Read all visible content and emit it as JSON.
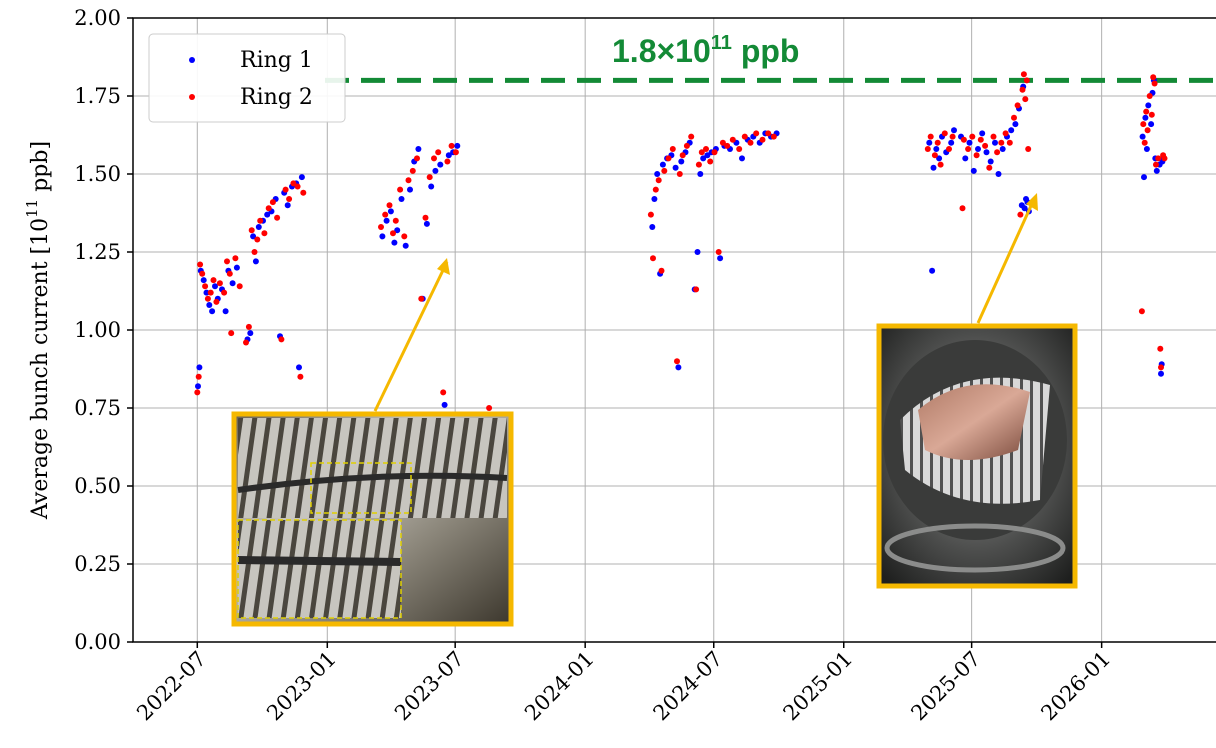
{
  "chart_data": {
    "type": "scatter",
    "ylabel_main": "Average bunch current [10",
    "ylabel_exp": "11",
    "ylabel_unit": " ppb]",
    "ylim": [
      0,
      2.0
    ],
    "xlim": [
      "2022-04-01",
      "2026-04-01"
    ],
    "yticks": [
      "0.00",
      "0.25",
      "0.50",
      "0.75",
      "1.00",
      "1.25",
      "1.50",
      "1.75",
      "2.00"
    ],
    "xticks": [
      "2022-07",
      "2023-01",
      "2023-07",
      "2024-01",
      "2024-07",
      "2025-01",
      "2025-07",
      "2026-01"
    ],
    "grid": true,
    "legend_position": "top-left",
    "legend": [
      {
        "name": "Ring 1",
        "color": "#0000ff"
      },
      {
        "name": "Ring 2",
        "color": "#ff0000"
      }
    ],
    "target_line": {
      "y": 1.8,
      "label_main": "1.8×10",
      "label_exp": "11",
      "label_unit": " ppb",
      "color": "#138a36"
    },
    "series": [
      {
        "name": "Ring 1",
        "color": "#0000ff",
        "points": [
          [
            "2022-07-02",
            0.82
          ],
          [
            "2022-07-04",
            0.88
          ],
          [
            "2022-07-06",
            1.19
          ],
          [
            "2022-07-10",
            1.16
          ],
          [
            "2022-07-14",
            1.12
          ],
          [
            "2022-07-18",
            1.08
          ],
          [
            "2022-07-22",
            1.06
          ],
          [
            "2022-07-26",
            1.14
          ],
          [
            "2022-07-30",
            1.1
          ],
          [
            "2022-08-05",
            1.13
          ],
          [
            "2022-08-10",
            1.06
          ],
          [
            "2022-08-14",
            1.19
          ],
          [
            "2022-08-20",
            1.15
          ],
          [
            "2022-08-26",
            1.2
          ],
          [
            "2022-09-10",
            0.97
          ],
          [
            "2022-09-14",
            0.99
          ],
          [
            "2022-09-18",
            1.3
          ],
          [
            "2022-09-22",
            1.22
          ],
          [
            "2022-09-26",
            1.33
          ],
          [
            "2022-10-02",
            1.35
          ],
          [
            "2022-10-08",
            1.37
          ],
          [
            "2022-10-14",
            1.38
          ],
          [
            "2022-10-20",
            1.42
          ],
          [
            "2022-10-26",
            0.98
          ],
          [
            "2022-11-01",
            1.44
          ],
          [
            "2022-11-06",
            1.4
          ],
          [
            "2022-11-12",
            1.46
          ],
          [
            "2022-11-18",
            1.47
          ],
          [
            "2022-11-22",
            0.88
          ],
          [
            "2022-11-26",
            1.49
          ],
          [
            "2023-03-20",
            1.3
          ],
          [
            "2023-03-26",
            1.35
          ],
          [
            "2023-04-01",
            1.38
          ],
          [
            "2023-04-06",
            1.28
          ],
          [
            "2023-04-10",
            1.32
          ],
          [
            "2023-04-16",
            1.42
          ],
          [
            "2023-04-22",
            1.27
          ],
          [
            "2023-04-28",
            1.45
          ],
          [
            "2023-05-04",
            1.54
          ],
          [
            "2023-05-10",
            1.58
          ],
          [
            "2023-05-16",
            1.1
          ],
          [
            "2023-05-22",
            1.34
          ],
          [
            "2023-05-28",
            1.46
          ],
          [
            "2023-06-03",
            1.51
          ],
          [
            "2023-06-10",
            1.53
          ],
          [
            "2023-06-16",
            0.76
          ],
          [
            "2023-06-22",
            1.56
          ],
          [
            "2023-06-28",
            1.57
          ],
          [
            "2023-07-04",
            1.59
          ],
          [
            "2023-08-20",
            0.72
          ],
          [
            "2023-08-24",
            0.54
          ],
          [
            "2023-08-26",
            0.63
          ],
          [
            "2023-08-28",
            0.5
          ],
          [
            "2024-04-05",
            1.33
          ],
          [
            "2024-04-08",
            1.42
          ],
          [
            "2024-04-12",
            1.5
          ],
          [
            "2024-04-16",
            1.18
          ],
          [
            "2024-04-20",
            1.53
          ],
          [
            "2024-04-26",
            1.55
          ],
          [
            "2024-05-02",
            1.56
          ],
          [
            "2024-05-08",
            1.52
          ],
          [
            "2024-05-12",
            0.88
          ],
          [
            "2024-05-16",
            1.54
          ],
          [
            "2024-05-22",
            1.57
          ],
          [
            "2024-05-28",
            1.6
          ],
          [
            "2024-06-04",
            1.13
          ],
          [
            "2024-06-08",
            1.25
          ],
          [
            "2024-06-12",
            1.5
          ],
          [
            "2024-06-16",
            1.55
          ],
          [
            "2024-06-22",
            1.56
          ],
          [
            "2024-06-28",
            1.57
          ],
          [
            "2024-07-04",
            1.58
          ],
          [
            "2024-07-10",
            1.23
          ],
          [
            "2024-07-16",
            1.59
          ],
          [
            "2024-07-24",
            1.58
          ],
          [
            "2024-08-02",
            1.6
          ],
          [
            "2024-08-10",
            1.55
          ],
          [
            "2024-08-18",
            1.61
          ],
          [
            "2024-08-26",
            1.62
          ],
          [
            "2024-09-04",
            1.6
          ],
          [
            "2024-09-12",
            1.63
          ],
          [
            "2024-09-20",
            1.62
          ],
          [
            "2024-09-28",
            1.63
          ],
          [
            "2025-05-02",
            1.6
          ],
          [
            "2025-05-06",
            1.19
          ],
          [
            "2025-05-08",
            1.52
          ],
          [
            "2025-05-12",
            1.58
          ],
          [
            "2025-05-16",
            1.55
          ],
          [
            "2025-05-20",
            1.62
          ],
          [
            "2025-05-26",
            1.57
          ],
          [
            "2025-06-02",
            1.6
          ],
          [
            "2025-06-06",
            1.64
          ],
          [
            "2025-06-16",
            1.62
          ],
          [
            "2025-06-22",
            1.55
          ],
          [
            "2025-06-28",
            1.6
          ],
          [
            "2025-07-04",
            1.51
          ],
          [
            "2025-07-10",
            1.58
          ],
          [
            "2025-07-16",
            1.63
          ],
          [
            "2025-07-22",
            1.57
          ],
          [
            "2025-07-28",
            1.54
          ],
          [
            "2025-08-03",
            1.6
          ],
          [
            "2025-08-08",
            1.5
          ],
          [
            "2025-08-14",
            1.58
          ],
          [
            "2025-08-20",
            1.62
          ],
          [
            "2025-08-26",
            1.64
          ],
          [
            "2025-09-01",
            1.66
          ],
          [
            "2025-09-06",
            1.71
          ],
          [
            "2025-09-10",
            1.4
          ],
          [
            "2025-09-12",
            1.78
          ],
          [
            "2025-09-14",
            1.39
          ],
          [
            "2025-09-16",
            1.42
          ],
          [
            "2025-09-18",
            1.41
          ],
          [
            "2025-09-20",
            1.38
          ],
          [
            "2026-02-28",
            1.62
          ],
          [
            "2026-03-02",
            1.49
          ],
          [
            "2026-03-04",
            1.68
          ],
          [
            "2026-03-06",
            1.58
          ],
          [
            "2026-03-08",
            1.72
          ],
          [
            "2026-03-12",
            1.66
          ],
          [
            "2026-03-14",
            1.76
          ],
          [
            "2026-03-16",
            1.8
          ],
          [
            "2026-03-18",
            1.55
          ],
          [
            "2026-03-20",
            1.51
          ],
          [
            "2026-03-24",
            1.53
          ],
          [
            "2026-03-26",
            0.86
          ],
          [
            "2026-03-27",
            0.89
          ],
          [
            "2026-03-28",
            1.54
          ],
          [
            "2026-03-30",
            1.55
          ]
        ]
      },
      {
        "name": "Ring 2",
        "color": "#ff0000",
        "points": [
          [
            "2022-07-01",
            0.8
          ],
          [
            "2022-07-03",
            0.85
          ],
          [
            "2022-07-05",
            1.21
          ],
          [
            "2022-07-08",
            1.18
          ],
          [
            "2022-07-12",
            1.14
          ],
          [
            "2022-07-16",
            1.1
          ],
          [
            "2022-07-20",
            1.12
          ],
          [
            "2022-07-24",
            1.16
          ],
          [
            "2022-07-28",
            1.09
          ],
          [
            "2022-08-02",
            1.15
          ],
          [
            "2022-08-08",
            1.12
          ],
          [
            "2022-08-12",
            1.22
          ],
          [
            "2022-08-16",
            1.18
          ],
          [
            "2022-08-18",
            0.99
          ],
          [
            "2022-08-24",
            1.23
          ],
          [
            "2022-08-30",
            1.14
          ],
          [
            "2022-09-08",
            0.96
          ],
          [
            "2022-09-12",
            1.01
          ],
          [
            "2022-09-16",
            1.32
          ],
          [
            "2022-09-20",
            1.25
          ],
          [
            "2022-09-24",
            1.29
          ],
          [
            "2022-09-28",
            1.35
          ],
          [
            "2022-10-04",
            1.31
          ],
          [
            "2022-10-10",
            1.39
          ],
          [
            "2022-10-16",
            1.41
          ],
          [
            "2022-10-22",
            1.36
          ],
          [
            "2022-10-28",
            0.97
          ],
          [
            "2022-11-03",
            1.45
          ],
          [
            "2022-11-08",
            1.42
          ],
          [
            "2022-11-14",
            1.47
          ],
          [
            "2022-11-20",
            1.46
          ],
          [
            "2022-11-24",
            0.85
          ],
          [
            "2022-11-28",
            1.44
          ],
          [
            "2023-03-18",
            1.33
          ],
          [
            "2023-03-24",
            1.37
          ],
          [
            "2023-03-30",
            1.4
          ],
          [
            "2023-04-04",
            1.31
          ],
          [
            "2023-04-08",
            1.35
          ],
          [
            "2023-04-14",
            1.45
          ],
          [
            "2023-04-20",
            1.3
          ],
          [
            "2023-04-26",
            1.48
          ],
          [
            "2023-05-02",
            1.51
          ],
          [
            "2023-05-08",
            1.55
          ],
          [
            "2023-05-14",
            1.1
          ],
          [
            "2023-05-20",
            1.36
          ],
          [
            "2023-05-26",
            1.49
          ],
          [
            "2023-06-01",
            1.55
          ],
          [
            "2023-06-07",
            1.57
          ],
          [
            "2023-06-14",
            0.8
          ],
          [
            "2023-06-20",
            1.54
          ],
          [
            "2023-06-26",
            1.59
          ],
          [
            "2023-07-02",
            1.57
          ],
          [
            "2023-08-18",
            0.75
          ],
          [
            "2023-08-22",
            0.49
          ],
          [
            "2023-08-25",
            0.6
          ],
          [
            "2023-08-27",
            0.49
          ],
          [
            "2024-04-03",
            1.37
          ],
          [
            "2024-04-06",
            1.23
          ],
          [
            "2024-04-10",
            1.45
          ],
          [
            "2024-04-14",
            1.48
          ],
          [
            "2024-04-18",
            1.19
          ],
          [
            "2024-04-22",
            1.51
          ],
          [
            "2024-04-28",
            1.55
          ],
          [
            "2024-05-04",
            1.58
          ],
          [
            "2024-05-10",
            0.9
          ],
          [
            "2024-05-14",
            1.5
          ],
          [
            "2024-05-18",
            1.56
          ],
          [
            "2024-05-24",
            1.59
          ],
          [
            "2024-05-30",
            1.62
          ],
          [
            "2024-06-06",
            1.13
          ],
          [
            "2024-06-10",
            1.53
          ],
          [
            "2024-06-14",
            1.57
          ],
          [
            "2024-06-20",
            1.58
          ],
          [
            "2024-06-26",
            1.54
          ],
          [
            "2024-07-02",
            1.57
          ],
          [
            "2024-07-08",
            1.25
          ],
          [
            "2024-07-14",
            1.6
          ],
          [
            "2024-07-20",
            1.59
          ],
          [
            "2024-07-28",
            1.61
          ],
          [
            "2024-08-06",
            1.58
          ],
          [
            "2024-08-14",
            1.62
          ],
          [
            "2024-08-22",
            1.6
          ],
          [
            "2024-08-30",
            1.63
          ],
          [
            "2024-09-08",
            1.61
          ],
          [
            "2024-09-16",
            1.63
          ],
          [
            "2024-09-24",
            1.62
          ],
          [
            "2025-04-30",
            1.58
          ],
          [
            "2025-05-04",
            1.62
          ],
          [
            "2025-05-10",
            1.56
          ],
          [
            "2025-05-14",
            1.6
          ],
          [
            "2025-05-18",
            1.53
          ],
          [
            "2025-05-24",
            1.63
          ],
          [
            "2025-05-30",
            1.58
          ],
          [
            "2025-06-04",
            1.62
          ],
          [
            "2025-06-18",
            1.39
          ],
          [
            "2025-06-20",
            1.61
          ],
          [
            "2025-06-26",
            1.58
          ],
          [
            "2025-07-02",
            1.62
          ],
          [
            "2025-07-08",
            1.56
          ],
          [
            "2025-07-14",
            1.61
          ],
          [
            "2025-07-20",
            1.59
          ],
          [
            "2025-07-26",
            1.52
          ],
          [
            "2025-08-01",
            1.62
          ],
          [
            "2025-08-06",
            1.57
          ],
          [
            "2025-08-12",
            1.6
          ],
          [
            "2025-08-18",
            1.63
          ],
          [
            "2025-08-24",
            1.6
          ],
          [
            "2025-08-30",
            1.68
          ],
          [
            "2025-09-04",
            1.72
          ],
          [
            "2025-09-08",
            1.37
          ],
          [
            "2025-09-11",
            1.77
          ],
          [
            "2025-09-13",
            1.82
          ],
          [
            "2025-09-15",
            1.74
          ],
          [
            "2025-09-17",
            1.8
          ],
          [
            "2025-09-19",
            1.58
          ],
          [
            "2026-02-27",
            1.06
          ],
          [
            "2026-03-01",
            1.66
          ],
          [
            "2026-03-03",
            1.6
          ],
          [
            "2026-03-05",
            1.7
          ],
          [
            "2026-03-07",
            1.64
          ],
          [
            "2026-03-10",
            1.75
          ],
          [
            "2026-03-13",
            1.69
          ],
          [
            "2026-03-15",
            1.81
          ],
          [
            "2026-03-17",
            1.79
          ],
          [
            "2026-03-19",
            1.53
          ],
          [
            "2026-03-22",
            1.55
          ],
          [
            "2026-03-25",
            0.94
          ],
          [
            "2026-03-26",
            0.88
          ],
          [
            "2026-03-29",
            1.56
          ],
          [
            "2026-03-31",
            1.55
          ]
        ]
      }
    ]
  }
}
